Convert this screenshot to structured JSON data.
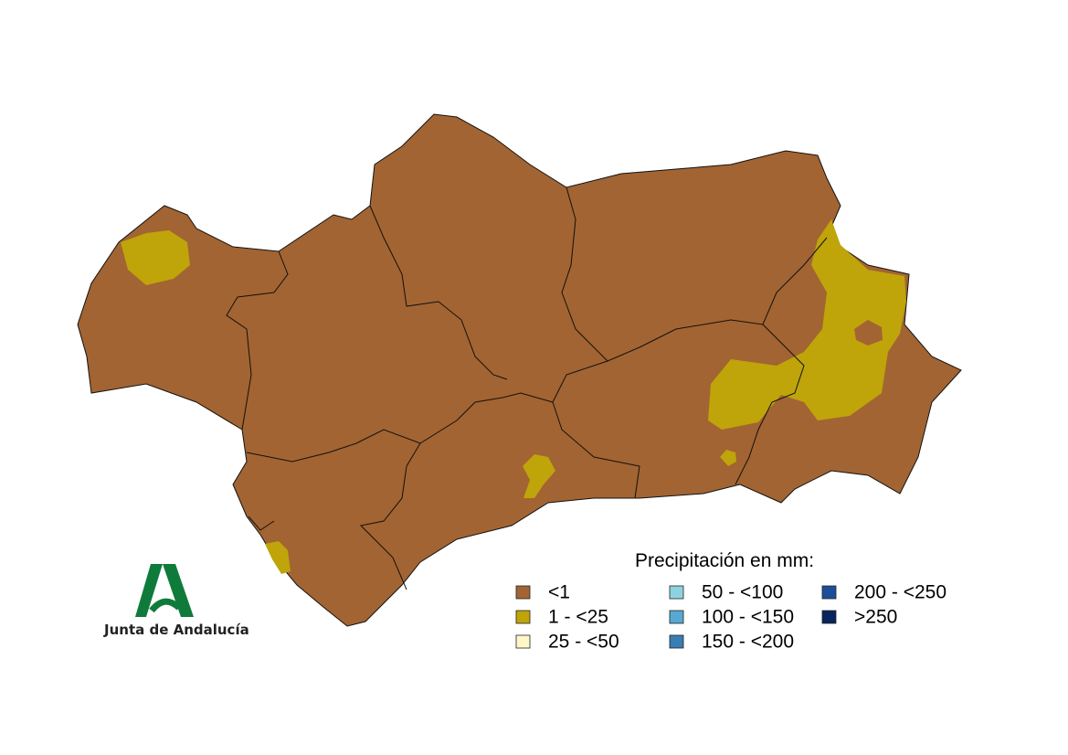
{
  "map": {
    "legend": {
      "title": "Precipitación en mm:",
      "items": [
        {
          "label": "<1",
          "color": "#a26432"
        },
        {
          "label": "1 - <25",
          "color": "#bfa40a"
        },
        {
          "label": "25 - <50",
          "color": "#fff7c8"
        },
        {
          "label": "50 - <100",
          "color": "#8ed2e0"
        },
        {
          "label": "100 - <150",
          "color": "#58a9d1"
        },
        {
          "label": "150 - <200",
          "color": "#3a7db3"
        },
        {
          "label": "200 - <250",
          "color": "#1c4f98"
        },
        {
          "label": ">250",
          "color": "#08245e"
        }
      ]
    },
    "logo": {
      "text": "Junta de Andalucía"
    }
  }
}
